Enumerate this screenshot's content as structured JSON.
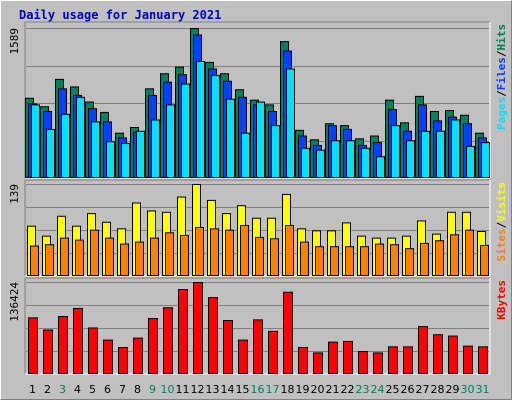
{
  "title": "Daily usage for January 2021",
  "colors": {
    "background": "#c0c0c0",
    "title": "#0000c0",
    "hits": "#00805c",
    "files": "#0040ff",
    "pages": "#00e0ff",
    "visits": "#ffff00",
    "sites": "#ff8000",
    "kbytes": "#ff0000",
    "weekday": "#000000",
    "weekend": "#00805c"
  },
  "chart_data": [
    {
      "type": "bar",
      "panel": "top",
      "ymax_label": "1589",
      "ylim": [
        0,
        1589
      ],
      "grid": true,
      "legend_parts": [
        "Pages",
        "/",
        "Files",
        "/",
        "Hits"
      ],
      "categories": [
        "1",
        "2",
        "3",
        "4",
        "5",
        "6",
        "7",
        "8",
        "9",
        "10",
        "11",
        "12",
        "13",
        "14",
        "15",
        "16",
        "17",
        "18",
        "19",
        "20",
        "21",
        "22",
        "23",
        "24",
        "25",
        "26",
        "27",
        "28",
        "29",
        "30",
        "31"
      ],
      "weekend_days": [
        "3",
        "9",
        "10",
        "16",
        "17",
        "23",
        "24",
        "30",
        "31"
      ],
      "series": [
        {
          "name": "Hits",
          "values": [
            850,
            760,
            1050,
            970,
            810,
            700,
            480,
            540,
            950,
            1110,
            1180,
            1589,
            1230,
            1110,
            940,
            830,
            780,
            1450,
            510,
            410,
            580,
            560,
            420,
            450,
            830,
            590,
            870,
            710,
            720,
            670,
            480
          ]
        },
        {
          "name": "Files",
          "values": [
            790,
            710,
            950,
            880,
            740,
            600,
            430,
            490,
            880,
            1020,
            1100,
            1520,
            1160,
            1030,
            860,
            780,
            710,
            1350,
            450,
            350,
            560,
            520,
            350,
            380,
            730,
            500,
            780,
            610,
            650,
            580,
            430
          ]
        },
        {
          "name": "Pages",
          "values": [
            780,
            520,
            680,
            860,
            600,
            390,
            370,
            500,
            620,
            780,
            1000,
            1240,
            1090,
            840,
            480,
            810,
            560,
            1160,
            320,
            300,
            400,
            400,
            320,
            230,
            560,
            400,
            500,
            500,
            620,
            340,
            380
          ]
        }
      ]
    },
    {
      "type": "bar",
      "panel": "middle",
      "ymax_label": "139",
      "ylim": [
        0,
        139
      ],
      "grid": true,
      "legend_parts": [
        "Sites",
        "/",
        "Visits"
      ],
      "categories": [
        "1",
        "2",
        "3",
        "4",
        "5",
        "6",
        "7",
        "8",
        "9",
        "10",
        "11",
        "12",
        "13",
        "14",
        "15",
        "16",
        "17",
        "18",
        "19",
        "20",
        "21",
        "22",
        "23",
        "24",
        "25",
        "26",
        "27",
        "28",
        "29",
        "30",
        "31"
      ],
      "weekend_days": [
        "3",
        "9",
        "10",
        "16",
        "17",
        "23",
        "24",
        "30",
        "31"
      ],
      "series": [
        {
          "name": "Visits",
          "values": [
            76,
            61,
            91,
            76,
            95,
            82,
            72,
            111,
            99,
            97,
            120,
            139,
            115,
            95,
            107,
            88,
            88,
            124,
            72,
            69,
            69,
            81,
            61,
            58,
            58,
            61,
            84,
            64,
            97,
            97,
            68
          ]
        },
        {
          "name": "Sites",
          "values": [
            46,
            48,
            58,
            55,
            70,
            58,
            49,
            52,
            58,
            66,
            62,
            74,
            72,
            70,
            77,
            59,
            57,
            77,
            52,
            45,
            45,
            45,
            45,
            49,
            48,
            42,
            50,
            54,
            63,
            70,
            47
          ]
        }
      ]
    },
    {
      "type": "bar",
      "panel": "bottom",
      "ymax_label": "136424",
      "ylim": [
        0,
        136424
      ],
      "grid": true,
      "legend_parts": [
        "KBytes"
      ],
      "categories": [
        "1",
        "2",
        "3",
        "4",
        "5",
        "6",
        "7",
        "8",
        "9",
        "10",
        "11",
        "12",
        "13",
        "14",
        "15",
        "16",
        "17",
        "18",
        "19",
        "20",
        "21",
        "22",
        "23",
        "24",
        "25",
        "26",
        "27",
        "28",
        "29",
        "30",
        "31"
      ],
      "weekend_days": [
        "3",
        "9",
        "10",
        "16",
        "17",
        "23",
        "24",
        "30",
        "31"
      ],
      "series": [
        {
          "name": "KBytes",
          "values": [
            84000,
            66000,
            86000,
            98000,
            69000,
            51000,
            40000,
            54000,
            83000,
            99000,
            126000,
            136424,
            114000,
            80000,
            51000,
            81000,
            64000,
            122000,
            40000,
            32000,
            48000,
            49000,
            34000,
            32000,
            41000,
            41000,
            71000,
            59000,
            57000,
            42000,
            41000
          ]
        }
      ]
    }
  ]
}
